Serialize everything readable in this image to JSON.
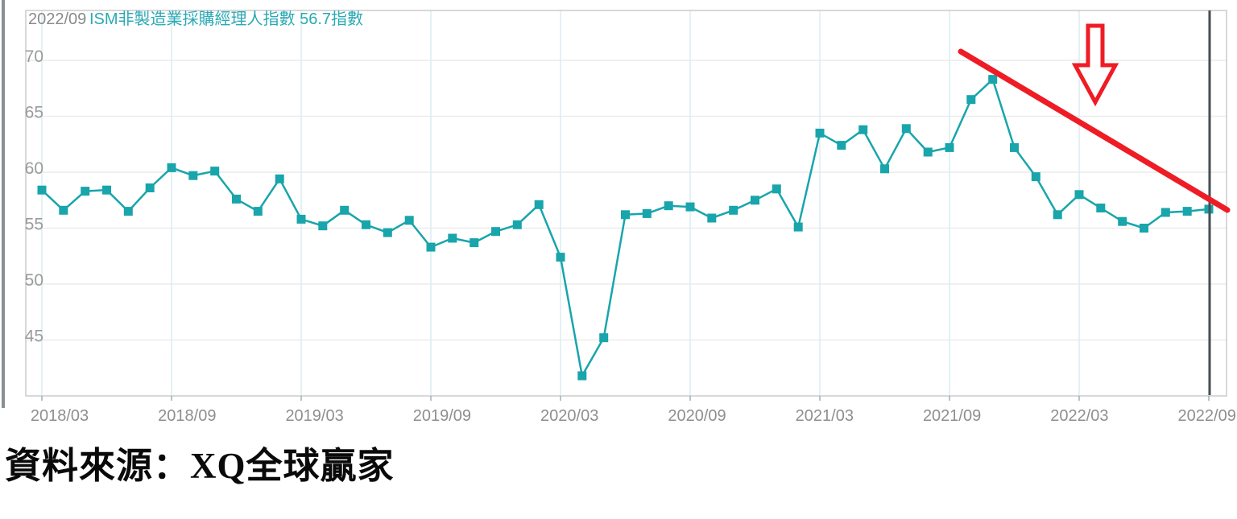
{
  "tooltip": {
    "date": "2022/09",
    "text": "ISM非製造業採購經理人指數 56.7指數"
  },
  "source": {
    "text": "資料來源：XQ全球贏家"
  },
  "colors": {
    "series": "#18a5ab",
    "title_teal": "#2aa9b4",
    "title_gray": "#8a8a8a",
    "axis_label": "#8f8f8f",
    "h_grid": "#ececec",
    "v_grid": "#d9edf2",
    "border": "#cbcbcb",
    "tick": "#aaaaaa",
    "crosshair": "#474e54",
    "annotation_red": "#ee1c25",
    "background": "#ffffff"
  },
  "chart_data": {
    "type": "line",
    "title": "ISM非製造業採購經理人指數",
    "subtitle_value": "56.7指數",
    "marker": "square",
    "grid": true,
    "legend_position": "none",
    "ylim": [
      40,
      74.5
    ],
    "y_ticks": [
      70,
      65,
      60,
      55,
      50,
      45
    ],
    "x_tick_labels": [
      "2018/03",
      "2018/09",
      "2019/03",
      "2019/09",
      "2020/03",
      "2020/09",
      "2021/03",
      "2021/09",
      "2022/03",
      "2022/09"
    ],
    "categories": [
      "2018/03",
      "2018/04",
      "2018/05",
      "2018/06",
      "2018/07",
      "2018/08",
      "2018/09",
      "2018/10",
      "2018/11",
      "2018/12",
      "2019/01",
      "2019/02",
      "2019/03",
      "2019/04",
      "2019/05",
      "2019/06",
      "2019/07",
      "2019/08",
      "2019/09",
      "2019/10",
      "2019/11",
      "2019/12",
      "2020/01",
      "2020/02",
      "2020/03",
      "2020/04",
      "2020/05",
      "2020/06",
      "2020/07",
      "2020/08",
      "2020/09",
      "2020/10",
      "2020/11",
      "2020/12",
      "2021/01",
      "2021/02",
      "2021/03",
      "2021/04",
      "2021/05",
      "2021/06",
      "2021/07",
      "2021/08",
      "2021/09",
      "2021/10",
      "2021/11",
      "2021/12",
      "2022/01",
      "2022/02",
      "2022/03",
      "2022/04",
      "2022/05",
      "2022/06",
      "2022/07",
      "2022/08",
      "2022/09"
    ],
    "values": [
      58.4,
      56.6,
      58.3,
      58.4,
      56.5,
      58.6,
      60.4,
      59.7,
      60.1,
      57.6,
      56.5,
      59.4,
      55.8,
      55.2,
      56.6,
      55.3,
      54.6,
      55.7,
      53.3,
      54.1,
      53.7,
      54.7,
      55.3,
      57.1,
      52.4,
      41.8,
      45.2,
      56.2,
      56.3,
      57.0,
      56.9,
      55.9,
      56.6,
      57.5,
      58.5,
      55.1,
      63.5,
      62.4,
      63.8,
      60.3,
      63.9,
      61.8,
      62.2,
      66.5,
      68.3,
      62.2,
      59.6,
      56.2,
      58.0,
      56.8,
      55.6,
      55.0,
      56.4,
      56.5,
      56.7
    ],
    "annotations": {
      "crosshair_at": "2022/09",
      "trend_line": {
        "type": "downtrend-line",
        "color": "#ee1c25"
      },
      "down_arrow": {
        "type": "down-arrow-outline",
        "color": "#ee1c25",
        "fill": "#ffffff"
      }
    }
  }
}
